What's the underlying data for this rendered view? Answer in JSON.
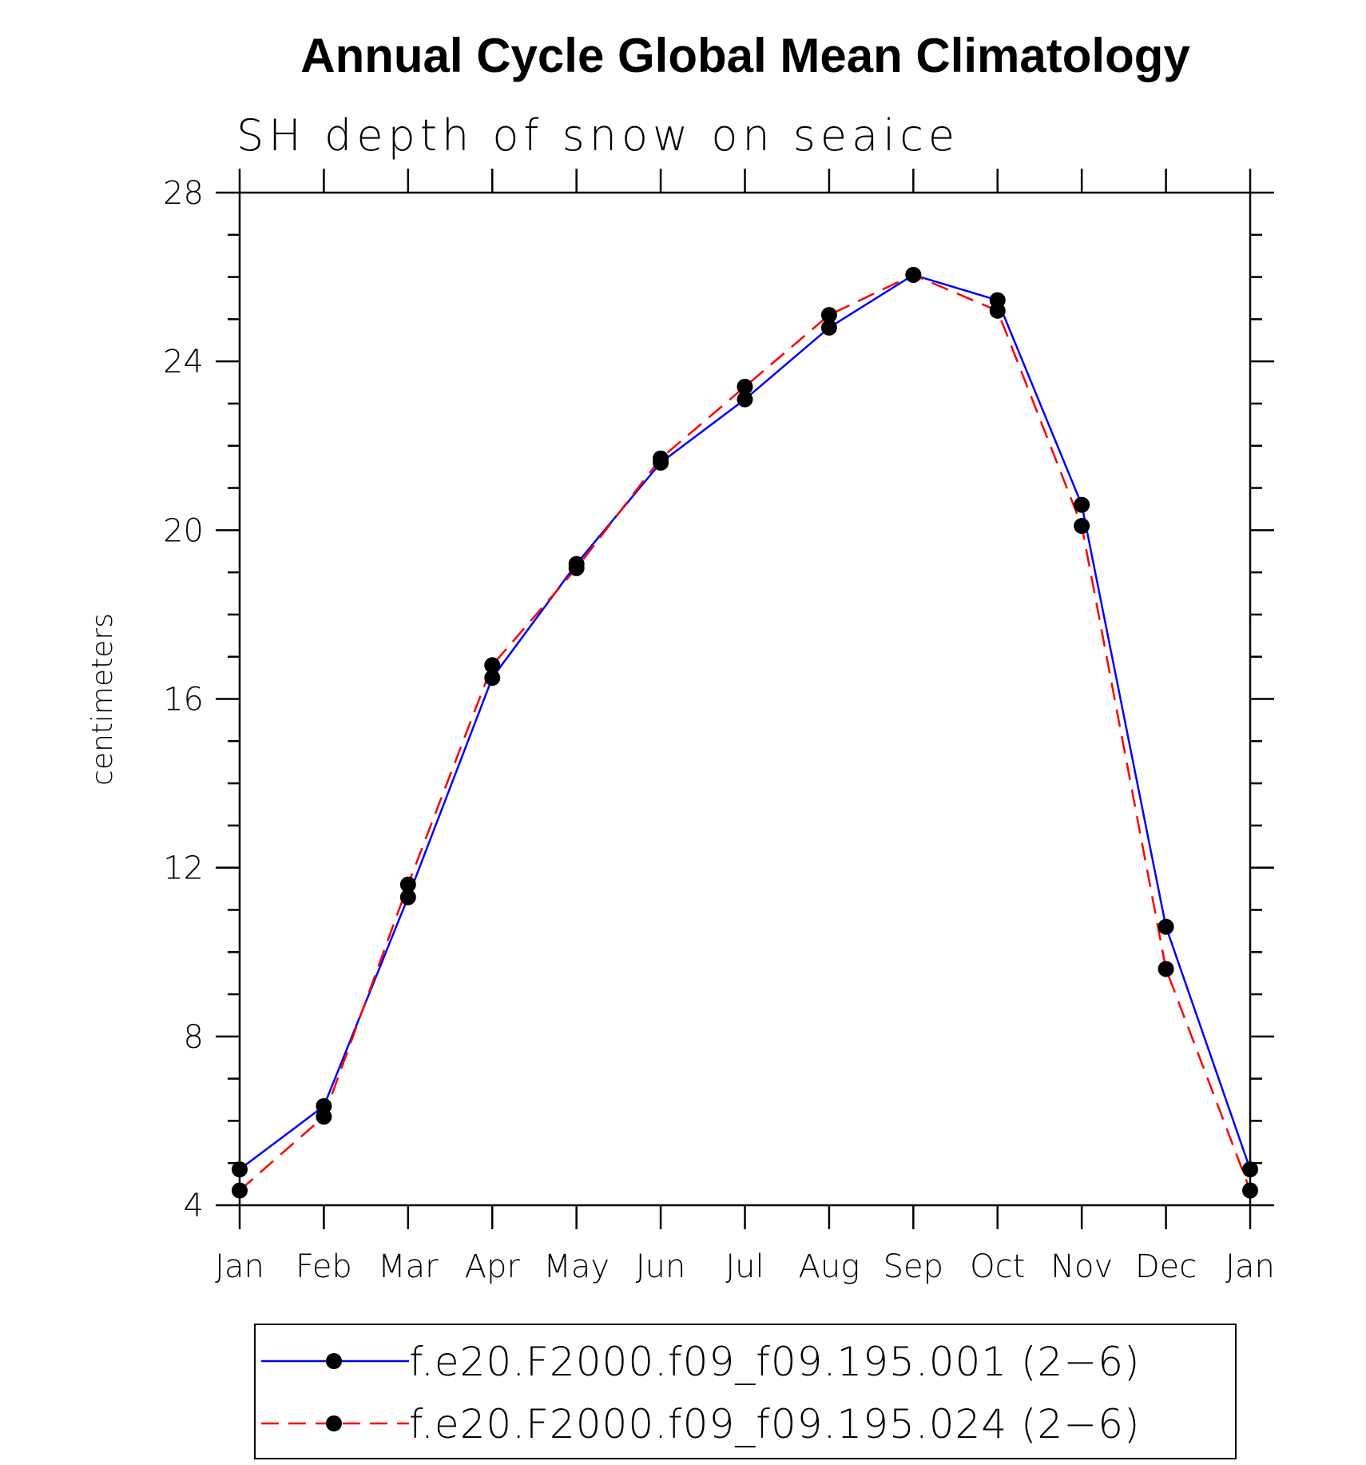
{
  "chart_data": {
    "type": "line",
    "title": "Annual Cycle Global Mean Climatology",
    "subtitle": "SH depth of snow on seaice",
    "xlabel": "",
    "ylabel": "centimeters",
    "categories": [
      "Jan",
      "Feb",
      "Mar",
      "Apr",
      "May",
      "Jun",
      "Jul",
      "Aug",
      "Sep",
      "Oct",
      "Nov",
      "Dec",
      "Jan"
    ],
    "ylim": [
      4,
      28
    ],
    "yticks": [
      "4",
      "8",
      "12",
      "16",
      "20",
      "24",
      "28"
    ],
    "grid": false,
    "legend_position": "bottom",
    "series": [
      {
        "name": "f.e20.F2000.f09_f09.195.001 (2−6)",
        "color": "#0000ff",
        "dash": "solid",
        "marker": "filled-circle",
        "values": [
          4.85,
          6.35,
          11.3,
          16.5,
          19.2,
          21.6,
          23.1,
          24.8,
          26.05,
          25.45,
          20.6,
          10.6,
          4.85
        ]
      },
      {
        "name": "f.e20.F2000.f09_f09.195.024 (2−6)",
        "color": "#ff0000",
        "dash": "dashed",
        "marker": "filled-circle",
        "values": [
          4.35,
          6.1,
          11.6,
          16.8,
          19.1,
          21.7,
          23.4,
          25.1,
          26.05,
          25.2,
          20.1,
          9.6,
          4.35
        ]
      }
    ]
  }
}
